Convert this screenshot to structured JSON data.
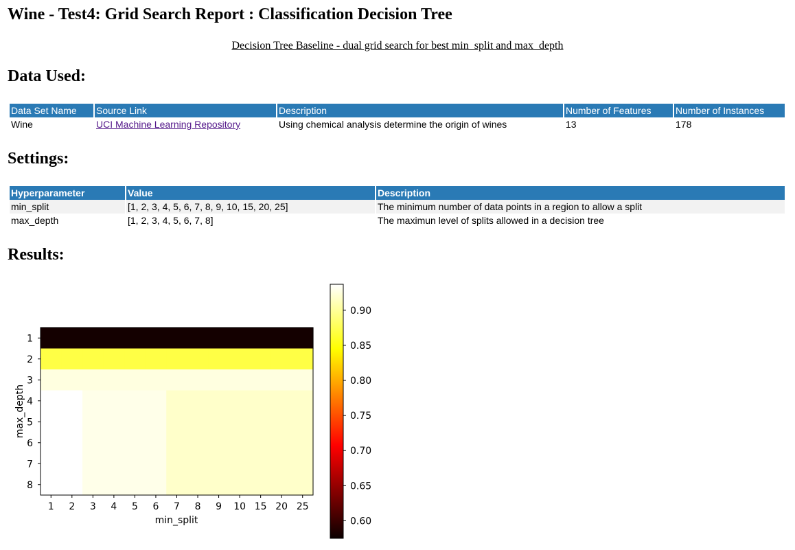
{
  "page": {
    "title": "Wine - Test4: Grid Search Report : Classification Decision Tree",
    "subtitle": "Decision Tree Baseline - dual grid search for best min_split and max_depth"
  },
  "data_used": {
    "heading": "Data Used:",
    "headers": [
      "Data Set Name",
      "Source Link",
      "Description",
      "Number of Features",
      "Number of Instances"
    ],
    "row": {
      "name": "Wine",
      "source": "UCI Machine Learning Repository",
      "description": "Using chemical analysis determine the origin of wines",
      "features": "13",
      "instances": "178"
    }
  },
  "settings": {
    "heading": "Settings:",
    "headers": [
      "Hyperparameter",
      "Value",
      "Description"
    ],
    "rows": [
      {
        "name": "min_split",
        "value": "[1, 2, 3, 4, 5, 6, 7, 8, 9, 10, 15, 20, 25]",
        "description": "The minimum number of data points in a region to allow a split"
      },
      {
        "name": "max_depth",
        "value": "[1, 2, 3, 4, 5, 6, 7, 8]",
        "description": "The maximun level of splits allowed in a decision tree"
      }
    ]
  },
  "results": {
    "heading": "Results:"
  },
  "chart_data": {
    "type": "heatmap",
    "xlabel": "min_split",
    "ylabel": "max_depth",
    "x": [
      "1",
      "2",
      "3",
      "4",
      "5",
      "6",
      "7",
      "8",
      "9",
      "10",
      "15",
      "20",
      "25"
    ],
    "y": [
      "1",
      "2",
      "3",
      "4",
      "5",
      "6",
      "7",
      "8"
    ],
    "colormap": "hot",
    "vmin": 0.575,
    "vmax": 0.937,
    "colorbar_ticks": [
      "0.60",
      "0.65",
      "0.70",
      "0.75",
      "0.80",
      "0.85",
      "0.90"
    ],
    "values": [
      [
        0.58,
        0.58,
        0.58,
        0.58,
        0.58,
        0.58,
        0.58,
        0.58,
        0.58,
        0.58,
        0.58,
        0.58,
        0.58
      ],
      [
        0.87,
        0.87,
        0.87,
        0.87,
        0.87,
        0.87,
        0.87,
        0.87,
        0.87,
        0.87,
        0.87,
        0.87,
        0.87
      ],
      [
        0.926,
        0.926,
        0.926,
        0.926,
        0.926,
        0.926,
        0.926,
        0.926,
        0.926,
        0.926,
        0.926,
        0.926,
        0.926
      ],
      [
        0.937,
        0.937,
        0.929,
        0.929,
        0.929,
        0.929,
        0.918,
        0.918,
        0.918,
        0.918,
        0.918,
        0.918,
        0.918
      ],
      [
        0.937,
        0.937,
        0.929,
        0.929,
        0.929,
        0.929,
        0.918,
        0.918,
        0.918,
        0.918,
        0.918,
        0.918,
        0.918
      ],
      [
        0.937,
        0.937,
        0.929,
        0.929,
        0.929,
        0.929,
        0.918,
        0.918,
        0.918,
        0.918,
        0.918,
        0.918,
        0.918
      ],
      [
        0.937,
        0.937,
        0.929,
        0.929,
        0.929,
        0.929,
        0.918,
        0.918,
        0.918,
        0.918,
        0.918,
        0.918,
        0.918
      ],
      [
        0.937,
        0.937,
        0.929,
        0.929,
        0.929,
        0.929,
        0.918,
        0.918,
        0.918,
        0.918,
        0.918,
        0.918,
        0.918
      ]
    ]
  }
}
